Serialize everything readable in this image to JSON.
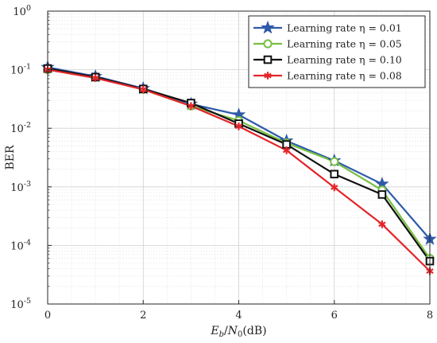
{
  "chart_data": {
    "type": "line",
    "xlabel": "E_b/N_0(dB)",
    "ylabel": "BER",
    "x_scale": "linear",
    "y_scale": "log",
    "xlim": [
      0,
      8
    ],
    "ylim": [
      1e-05,
      1
    ],
    "grid": true,
    "minor_grid": true,
    "legend_position": "top-right",
    "x_ticks": [
      0,
      2,
      4,
      6,
      8
    ],
    "y_ticks": [
      1e-05,
      0.0001,
      0.001,
      0.01,
      0.1,
      1
    ],
    "y_tick_mantissa": "10",
    "y_tick_exponents": [
      "-5",
      "-4",
      "-3",
      "-2",
      "-1",
      "0"
    ],
    "x": [
      0,
      1,
      2,
      3,
      4,
      5,
      6,
      7,
      8
    ],
    "series": [
      {
        "name": "Learning rate η = 0.01",
        "color": "#2e5aa8",
        "marker": "star",
        "values": [
          0.11,
          0.077,
          0.048,
          0.026,
          0.017,
          0.0061,
          0.0028,
          0.00112,
          0.000128
        ]
      },
      {
        "name": "Learning rate η = 0.05",
        "color": "#77c043",
        "marker": "circle",
        "values": [
          0.1,
          0.074,
          0.046,
          0.024,
          0.0135,
          0.0056,
          0.0027,
          0.00088,
          6e-05
        ]
      },
      {
        "name": "Learning rate η = 0.10",
        "color": "#111111",
        "marker": "square",
        "values": [
          0.105,
          0.075,
          0.047,
          0.027,
          0.012,
          0.0053,
          0.00165,
          0.00074,
          5.4e-05
        ]
      },
      {
        "name": "Learning rate η = 0.08",
        "color": "#e3262a",
        "marker": "asterisk",
        "values": [
          0.1,
          0.072,
          0.046,
          0.024,
          0.0108,
          0.0042,
          0.00098,
          0.00023,
          3.65e-05
        ]
      }
    ]
  }
}
